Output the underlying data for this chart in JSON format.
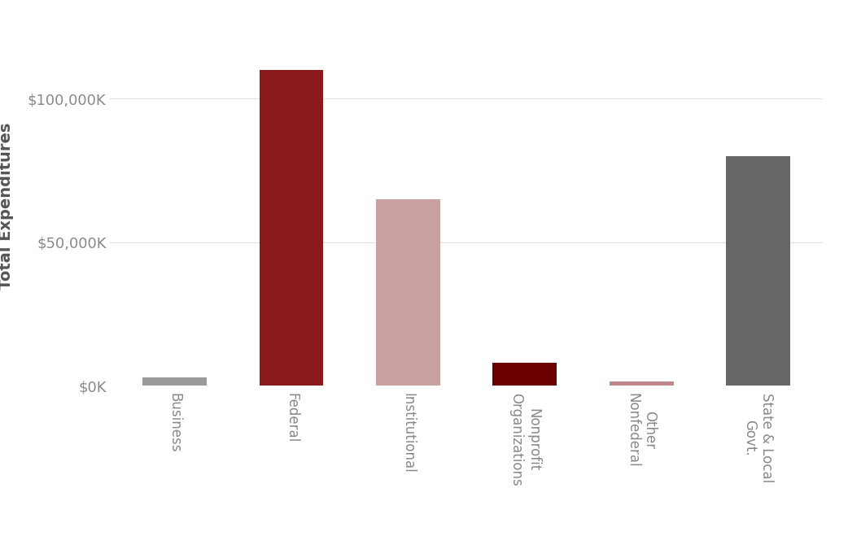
{
  "categories": [
    "Business",
    "Federal",
    "Institutional",
    "Nonprofit\nOrganizations",
    "Other\nNonfederal",
    "State & Local\nGovt."
  ],
  "values": [
    3000,
    110000,
    65000,
    8000,
    1500,
    80000
  ],
  "bar_colors": [
    "#9a9a9a",
    "#8B1A1A",
    "#C9A0A0",
    "#6B0000",
    "#C0888A",
    "#666666"
  ],
  "ylabel": "Total Expenditures",
  "ylim": [
    0,
    125000
  ],
  "yticks": [
    0,
    50000,
    100000
  ],
  "ytick_labels": [
    "$0K",
    "$50,000K",
    "$100,000K"
  ],
  "background_color": "#ffffff",
  "grid_color": "#e0e0e0",
  "label_color": "#888888",
  "ylabel_color": "#555555",
  "bar_width": 0.55,
  "figsize": [
    10.42,
    6.59
  ],
  "dpi": 100
}
